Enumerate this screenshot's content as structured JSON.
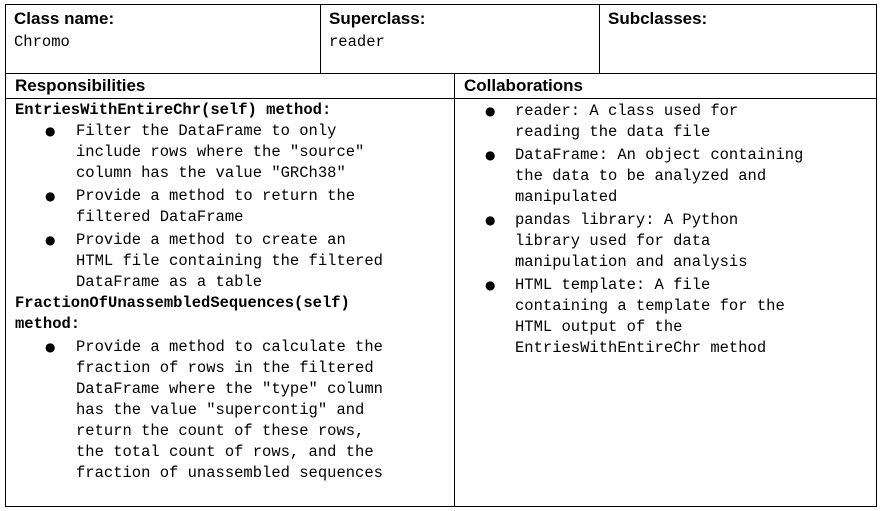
{
  "header": {
    "class_name_label": "Class name:",
    "class_name_value": "Chromo",
    "superclass_label": "Superclass:",
    "superclass_value": "reader",
    "subclasses_label": "Subclasses:"
  },
  "responsibilities": {
    "label": "Responsibilities",
    "method1_title": "EntriesWithEntireChr(self) method:",
    "method1_bullets": [
      "Filter the DataFrame to only\ninclude rows where the \"source\"\ncolumn has the value \"GRCh38\"",
      "Provide a method to return the\nfiltered DataFrame",
      "Provide a method to create an\nHTML file containing the filtered\nDataFrame as a table"
    ],
    "method2_title": "FractionOfUnassembledSequences(self)\nmethod:",
    "method2_bullets": [
      "Provide a method to calculate the\nfraction of rows in the filtered\nDataFrame where the \"type\" column\nhas the value \"supercontig\" and\nreturn the count of these rows,\nthe total count of rows, and the\nfraction of unassembled sequences"
    ]
  },
  "collaborations": {
    "label": "Collaborations",
    "bullets": [
      "reader: A class used for\nreading the data file",
      "DataFrame: An object containing\nthe data to be analyzed and\nmanipulated",
      "pandas library: A Python\nlibrary used for data\nmanipulation and analysis",
      "HTML template: A file\ncontaining a template for the\nHTML output of the\nEntriesWithEntireChr method"
    ]
  }
}
